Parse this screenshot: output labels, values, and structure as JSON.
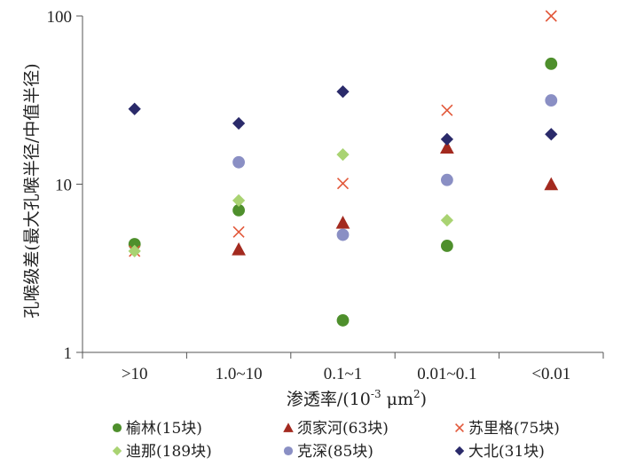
{
  "chart_data": {
    "type": "scatter",
    "categories": [
      ">10",
      "1.0~10",
      "0.1~1",
      "0.01~0.1",
      "<0.01"
    ],
    "yscale": "log",
    "ylim": [
      1,
      100
    ],
    "yticks": [
      "1",
      "10",
      "100"
    ],
    "ylabel": "孔喉级差(最大孔喉半径/中值半径)",
    "xlabel_main": "渗透率/(10",
    "xlabel_exp": "-3",
    "xlabel_unit": " μm",
    "xlabel_sq": "2",
    "xlabel_end": ")",
    "grid": false,
    "legend_position": "bottom",
    "series": [
      {
        "name": "榆林(15块)",
        "marker": "circle",
        "color": "#4e8f2c",
        "values": [
          4.4,
          7.0,
          1.55,
          4.3,
          52
        ]
      },
      {
        "name": "须家河(63块)",
        "marker": "triangle",
        "color": "#a32a1f",
        "values": [
          null,
          4.1,
          5.9,
          16.5,
          10
        ]
      },
      {
        "name": "苏里格(75块)",
        "marker": "x",
        "color": "#e2583a",
        "values": [
          4.0,
          5.2,
          10.1,
          27.5,
          100
        ]
      },
      {
        "name": "迪那(189块)",
        "marker": "diamond",
        "color": "#a9d372",
        "values": [
          4.0,
          8.0,
          15.0,
          6.1,
          null
        ]
      },
      {
        "name": "克深(85块)",
        "marker": "circle",
        "color": "#8a8fc4",
        "values": [
          null,
          13.5,
          5.0,
          10.6,
          31.5
        ]
      },
      {
        "name": "大北(31块)",
        "marker": "diamond",
        "color": "#2a2a6a",
        "values": [
          28.0,
          23.0,
          35.5,
          18.5,
          19.8
        ]
      }
    ]
  }
}
